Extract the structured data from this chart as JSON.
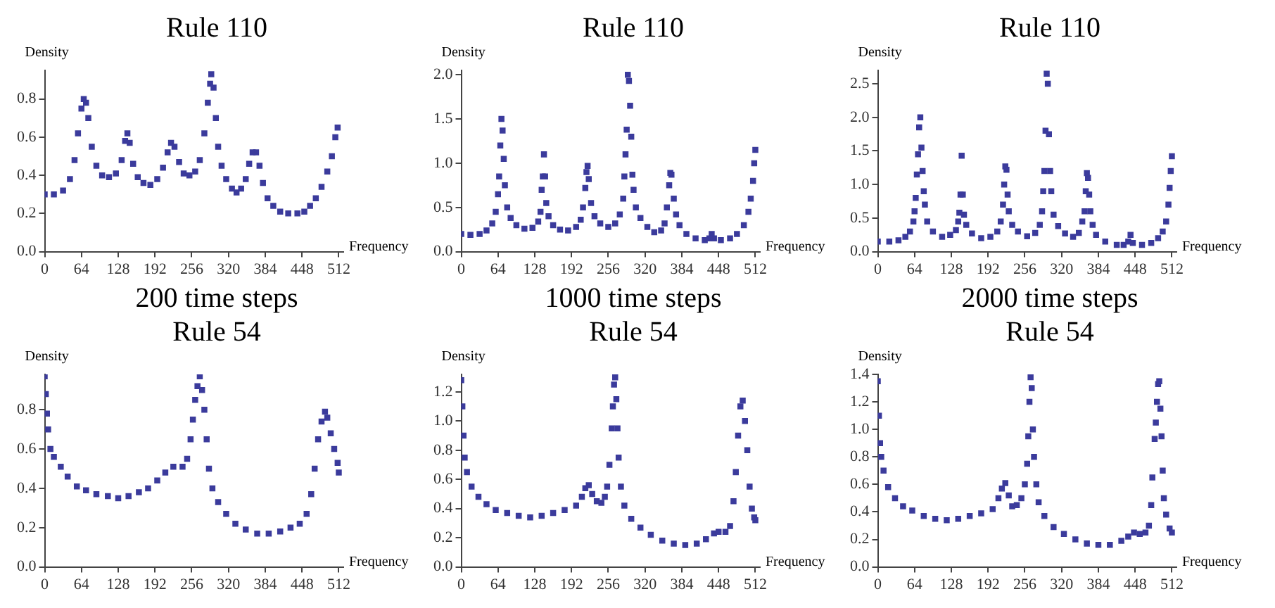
{
  "chart_data": [
    {
      "type": "scatter",
      "title": "Rule 110",
      "xlabel": "Frequency",
      "ylabel": "Density",
      "annotations": [
        "200 time steps"
      ],
      "color": "#3b3b9c",
      "marker": "square",
      "grid": false,
      "xlim": [
        0,
        520
      ],
      "xticks": [
        0,
        64,
        128,
        192,
        256,
        320,
        384,
        448,
        512
      ],
      "ylim": [
        0,
        0.95
      ],
      "yticks": [
        {
          "value": 0,
          "label": "0.0"
        },
        0.2,
        0.4,
        0.6,
        0.8
      ],
      "x": [
        0,
        16,
        32,
        44,
        52,
        58,
        64,
        68,
        72,
        76,
        82,
        90,
        100,
        112,
        124,
        134,
        140,
        144,
        148,
        154,
        162,
        172,
        184,
        196,
        206,
        214,
        220,
        226,
        234,
        242,
        252,
        262,
        270,
        278,
        284,
        288,
        290,
        294,
        298,
        302,
        308,
        316,
        326,
        334,
        342,
        350,
        356,
        362,
        368,
        374,
        380,
        388,
        398,
        410,
        424,
        440,
        452,
        462,
        472,
        482,
        492,
        500,
        506,
        510
      ],
      "values": [
        0.3,
        0.3,
        0.32,
        0.38,
        0.48,
        0.62,
        0.75,
        0.8,
        0.78,
        0.7,
        0.55,
        0.45,
        0.4,
        0.39,
        0.41,
        0.48,
        0.58,
        0.62,
        0.57,
        0.46,
        0.39,
        0.36,
        0.35,
        0.38,
        0.44,
        0.52,
        0.57,
        0.55,
        0.47,
        0.41,
        0.4,
        0.42,
        0.48,
        0.62,
        0.78,
        0.88,
        0.93,
        0.86,
        0.7,
        0.55,
        0.45,
        0.38,
        0.33,
        0.31,
        0.33,
        0.38,
        0.46,
        0.52,
        0.52,
        0.45,
        0.36,
        0.28,
        0.24,
        0.21,
        0.2,
        0.2,
        0.21,
        0.24,
        0.28,
        0.34,
        0.42,
        0.5,
        0.6,
        0.65
      ]
    },
    {
      "type": "scatter",
      "title": "Rule 110",
      "xlabel": "Frequency",
      "ylabel": "Density",
      "annotations": [
        "1000 time steps"
      ],
      "color": "#3b3b9c",
      "marker": "square",
      "grid": false,
      "xlim": [
        0,
        520
      ],
      "xticks": [
        0,
        64,
        128,
        192,
        256,
        320,
        384,
        448,
        512
      ],
      "ylim": [
        0,
        2.05
      ],
      "yticks": [
        {
          "value": 0,
          "label": "0.0"
        },
        0.5,
        {
          "value": 1,
          "label": "1.0"
        },
        1.5,
        {
          "value": 2,
          "label": "2.0"
        }
      ],
      "x": [
        0,
        16,
        32,
        44,
        54,
        60,
        64,
        66,
        68,
        70,
        72,
        74,
        76,
        80,
        86,
        96,
        110,
        124,
        134,
        138,
        140,
        142,
        144,
        146,
        148,
        152,
        160,
        172,
        186,
        200,
        208,
        212,
        216,
        218,
        220,
        222,
        226,
        232,
        242,
        256,
        268,
        276,
        282,
        284,
        286,
        288,
        290,
        292,
        294,
        296,
        298,
        300,
        304,
        312,
        324,
        336,
        348,
        354,
        358,
        362,
        364,
        366,
        370,
        374,
        380,
        392,
        408,
        424,
        432,
        436,
        440,
        452,
        468,
        480,
        492,
        500,
        504,
        508,
        510,
        512
      ],
      "values": [
        0.2,
        0.19,
        0.2,
        0.24,
        0.32,
        0.45,
        0.65,
        0.85,
        1.2,
        1.5,
        1.37,
        1.05,
        0.75,
        0.5,
        0.38,
        0.3,
        0.26,
        0.27,
        0.34,
        0.45,
        0.7,
        0.85,
        1.1,
        0.85,
        0.55,
        0.4,
        0.3,
        0.25,
        0.24,
        0.28,
        0.36,
        0.5,
        0.72,
        0.9,
        0.97,
        0.82,
        0.55,
        0.4,
        0.32,
        0.28,
        0.32,
        0.42,
        0.6,
        0.85,
        1.1,
        1.38,
        2.0,
        1.93,
        1.65,
        1.3,
        0.87,
        0.7,
        0.5,
        0.38,
        0.28,
        0.22,
        0.24,
        0.32,
        0.5,
        0.75,
        0.89,
        0.87,
        0.6,
        0.42,
        0.3,
        0.2,
        0.15,
        0.13,
        0.15,
        0.2,
        0.15,
        0.13,
        0.15,
        0.2,
        0.3,
        0.45,
        0.6,
        0.8,
        1.0,
        1.15
      ]
    },
    {
      "type": "scatter",
      "title": "Rule 110",
      "xlabel": "Frequency",
      "ylabel": "Density",
      "annotations": [
        "2000 time steps"
      ],
      "color": "#3b3b9c",
      "marker": "square",
      "grid": false,
      "xlim": [
        0,
        520
      ],
      "xticks": [
        0,
        64,
        128,
        192,
        256,
        320,
        384,
        448,
        512
      ],
      "ylim": [
        0,
        2.7
      ],
      "yticks": [
        {
          "value": 0,
          "label": "0.0"
        },
        0.5,
        {
          "value": 1,
          "label": "1.0"
        },
        1.5,
        {
          "value": 2,
          "label": "2.0"
        },
        2.5
      ],
      "x": [
        0,
        20,
        36,
        48,
        56,
        62,
        64,
        66,
        68,
        70,
        72,
        74,
        76,
        78,
        80,
        82,
        86,
        96,
        112,
        126,
        136,
        140,
        142,
        144,
        146,
        148,
        150,
        154,
        164,
        180,
        196,
        208,
        214,
        218,
        220,
        222,
        224,
        226,
        228,
        234,
        244,
        260,
        274,
        282,
        286,
        288,
        290,
        292,
        294,
        296,
        298,
        300,
        302,
        306,
        314,
        326,
        340,
        350,
        356,
        360,
        362,
        364,
        366,
        368,
        370,
        374,
        380,
        396,
        416,
        428,
        436,
        440,
        444,
        460,
        476,
        488,
        496,
        502,
        506,
        508,
        510,
        512
      ],
      "values": [
        0.15,
        0.15,
        0.17,
        0.22,
        0.3,
        0.45,
        0.6,
        0.8,
        1.15,
        1.45,
        1.85,
        2.0,
        1.55,
        1.2,
        0.9,
        0.7,
        0.45,
        0.3,
        0.22,
        0.25,
        0.32,
        0.45,
        0.58,
        0.85,
        1.43,
        0.85,
        0.55,
        0.4,
        0.27,
        0.2,
        0.22,
        0.3,
        0.45,
        0.7,
        1.0,
        1.27,
        1.22,
        0.85,
        0.6,
        0.4,
        0.3,
        0.23,
        0.28,
        0.4,
        0.6,
        0.9,
        1.2,
        1.8,
        2.65,
        2.5,
        1.75,
        1.2,
        0.9,
        0.55,
        0.38,
        0.27,
        0.22,
        0.28,
        0.45,
        0.6,
        0.9,
        1.17,
        1.1,
        0.85,
        0.6,
        0.4,
        0.25,
        0.15,
        0.1,
        0.1,
        0.15,
        0.25,
        0.13,
        0.1,
        0.13,
        0.2,
        0.3,
        0.45,
        0.7,
        0.95,
        1.2,
        1.42
      ]
    },
    {
      "type": "scatter",
      "title": "Rule 54",
      "xlabel": "Frequency",
      "ylabel": "Density",
      "color": "#3b3b9c",
      "marker": "square",
      "grid": false,
      "xlim": [
        0,
        520
      ],
      "xticks": [
        0,
        64,
        128,
        192,
        256,
        320,
        384,
        448,
        512
      ],
      "ylim": [
        0,
        0.98
      ],
      "yticks": [
        {
          "value": 0,
          "label": "0.0"
        },
        0.2,
        0.4,
        0.6,
        0.8
      ],
      "x": [
        0,
        2,
        4,
        6,
        10,
        16,
        28,
        40,
        56,
        72,
        90,
        110,
        128,
        146,
        164,
        180,
        196,
        210,
        224,
        240,
        248,
        254,
        258,
        262,
        266,
        270,
        274,
        278,
        282,
        286,
        292,
        302,
        316,
        332,
        350,
        370,
        390,
        410,
        428,
        444,
        456,
        464,
        470,
        476,
        482,
        488,
        492,
        498,
        504,
        510,
        512
      ],
      "values": [
        0.97,
        0.88,
        0.78,
        0.7,
        0.6,
        0.56,
        0.51,
        0.46,
        0.41,
        0.39,
        0.37,
        0.36,
        0.35,
        0.36,
        0.38,
        0.4,
        0.44,
        0.48,
        0.51,
        0.51,
        0.55,
        0.65,
        0.75,
        0.85,
        0.92,
        0.97,
        0.9,
        0.8,
        0.65,
        0.5,
        0.4,
        0.33,
        0.27,
        0.22,
        0.19,
        0.17,
        0.17,
        0.18,
        0.2,
        0.22,
        0.27,
        0.37,
        0.5,
        0.65,
        0.74,
        0.79,
        0.76,
        0.68,
        0.6,
        0.53,
        0.48
      ]
    },
    {
      "type": "scatter",
      "title": "Rule 54",
      "xlabel": "Frequency",
      "ylabel": "Density",
      "color": "#3b3b9c",
      "marker": "square",
      "grid": false,
      "xlim": [
        0,
        520
      ],
      "xticks": [
        0,
        64,
        128,
        192,
        256,
        320,
        384,
        448,
        512
      ],
      "ylim": [
        0,
        1.32
      ],
      "yticks": [
        {
          "value": 0,
          "label": "0.0"
        },
        0.2,
        0.4,
        0.6,
        0.8,
        {
          "value": 1,
          "label": "1.0"
        },
        1.2
      ],
      "x": [
        0,
        2,
        4,
        6,
        10,
        18,
        30,
        44,
        60,
        80,
        100,
        120,
        140,
        160,
        180,
        200,
        210,
        216,
        222,
        228,
        236,
        244,
        250,
        254,
        258,
        262,
        264,
        266,
        268,
        270,
        272,
        274,
        278,
        284,
        296,
        312,
        330,
        350,
        370,
        390,
        410,
        426,
        440,
        448,
        460,
        468,
        474,
        478,
        482,
        486,
        490,
        494,
        498,
        502,
        506,
        510,
        512
      ],
      "values": [
        1.28,
        1.1,
        0.9,
        0.75,
        0.65,
        0.55,
        0.48,
        0.43,
        0.39,
        0.37,
        0.35,
        0.34,
        0.35,
        0.37,
        0.39,
        0.42,
        0.48,
        0.54,
        0.56,
        0.5,
        0.45,
        0.44,
        0.48,
        0.55,
        0.7,
        0.95,
        1.1,
        1.25,
        1.3,
        1.15,
        0.95,
        0.75,
        0.55,
        0.42,
        0.33,
        0.27,
        0.22,
        0.18,
        0.16,
        0.15,
        0.16,
        0.19,
        0.23,
        0.24,
        0.24,
        0.28,
        0.45,
        0.65,
        0.9,
        1.1,
        1.14,
        1.0,
        0.8,
        0.55,
        0.4,
        0.34,
        0.32
      ]
    },
    {
      "type": "scatter",
      "title": "Rule 54",
      "xlabel": "Frequency",
      "ylabel": "Density",
      "color": "#3b3b9c",
      "marker": "square",
      "grid": false,
      "xlim": [
        0,
        520
      ],
      "xticks": [
        0,
        64,
        128,
        192,
        256,
        320,
        384,
        448,
        512
      ],
      "ylim": [
        0,
        1.4
      ],
      "yticks": [
        {
          "value": 0,
          "label": "0.0"
        },
        0.2,
        0.4,
        0.6,
        0.8,
        {
          "value": 1,
          "label": "1.0"
        },
        1.2,
        1.4
      ],
      "x": [
        0,
        2,
        4,
        6,
        10,
        18,
        30,
        44,
        60,
        80,
        100,
        120,
        140,
        160,
        180,
        200,
        210,
        216,
        222,
        228,
        234,
        242,
        250,
        256,
        260,
        262,
        264,
        266,
        268,
        270,
        272,
        276,
        280,
        290,
        306,
        324,
        344,
        364,
        384,
        404,
        424,
        436,
        446,
        456,
        466,
        472,
        476,
        478,
        482,
        484,
        486,
        488,
        490,
        492,
        494,
        496,
        498,
        502,
        508,
        512
      ],
      "values": [
        1.35,
        1.1,
        0.9,
        0.8,
        0.7,
        0.58,
        0.5,
        0.44,
        0.41,
        0.37,
        0.35,
        0.34,
        0.35,
        0.37,
        0.39,
        0.42,
        0.5,
        0.57,
        0.61,
        0.52,
        0.44,
        0.45,
        0.5,
        0.6,
        0.75,
        0.95,
        1.2,
        1.38,
        1.3,
        1.0,
        0.8,
        0.6,
        0.47,
        0.37,
        0.29,
        0.24,
        0.2,
        0.17,
        0.16,
        0.16,
        0.19,
        0.22,
        0.25,
        0.24,
        0.25,
        0.3,
        0.45,
        0.65,
        0.93,
        1.05,
        1.2,
        1.33,
        1.35,
        1.15,
        0.95,
        0.7,
        0.5,
        0.38,
        0.28,
        0.25
      ]
    }
  ]
}
